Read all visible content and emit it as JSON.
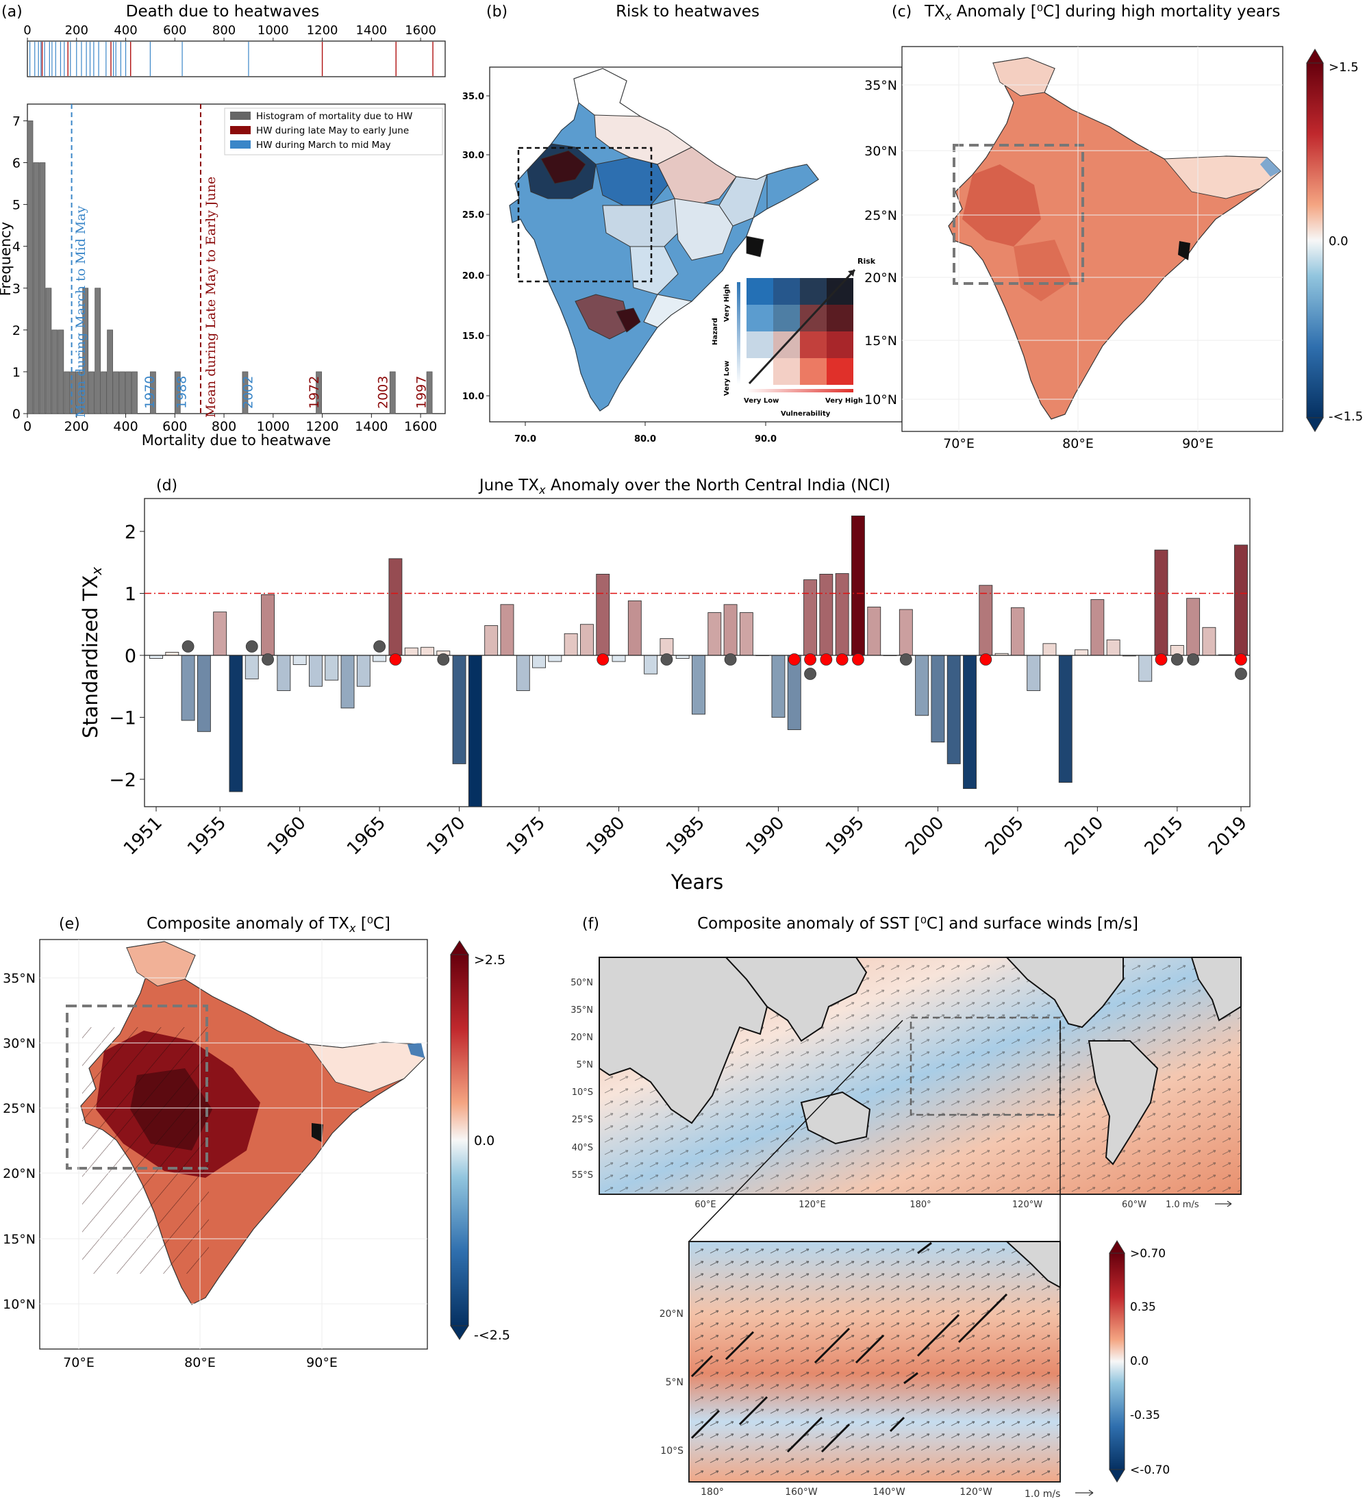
{
  "panel_a": {
    "letter": "(a)",
    "title": "Death due to heatwaves",
    "xlabel": "Mortality due to heatwave",
    "ylabel": "Frequency",
    "strip_ticks": [
      "0",
      "200",
      "400",
      "600",
      "800",
      "1000",
      "1200",
      "1400",
      "1600"
    ],
    "x_ticks": [
      "0",
      "200",
      "400",
      "600",
      "800",
      "1000",
      "1200",
      "1400",
      "1600"
    ],
    "y_ticks": [
      "0",
      "1",
      "2",
      "3",
      "4",
      "5",
      "6",
      "7"
    ],
    "legend": [
      {
        "label": "Histogram of mortality due to HW",
        "color": "#666666"
      },
      {
        "label": "HW during late May to early June",
        "color": "#8b0a0a"
      },
      {
        "label": "HW during March to mid May",
        "color": "#3a86c8"
      }
    ],
    "mean_blue_label": "Mean during March to Mid May",
    "mean_red_label": "Mean during Late May to Early June",
    "year_labels": [
      {
        "text": "1970",
        "color": "#3a86c8"
      },
      {
        "text": "1988",
        "color": "#3a86c8"
      },
      {
        "text": "2002",
        "color": "#3a86c8"
      },
      {
        "text": "1972",
        "color": "#8b0a0a"
      },
      {
        "text": "2003",
        "color": "#8b0a0a"
      },
      {
        "text": "1997",
        "color": "#8b0a0a"
      }
    ]
  },
  "panel_b": {
    "letter": "(b)",
    "title": "Risk to heatwaves",
    "lat_ticks": [
      "35.0",
      "30.0",
      "25.0",
      "20.0",
      "15.0",
      "10.0"
    ],
    "lon_ticks": [
      "70.0",
      "80.0",
      "90.0"
    ],
    "legend_risk": "Risk",
    "legend_hazard": "Hazard",
    "legend_vulnerability": "Vulnerability",
    "legend_very_high_y": "Very High",
    "legend_very_low_y": "Very Low",
    "legend_very_low_x": "Very Low",
    "legend_very_high_x": "Very High"
  },
  "panel_c": {
    "letter": "(c)",
    "title_pre": "TX",
    "title_sub": "x",
    "title_post": " Anomaly [⁰C] during high mortality years",
    "lat_ticks": [
      "35°N",
      "30°N",
      "25°N",
      "20°N",
      "15°N",
      "10°N"
    ],
    "lon_ticks": [
      "70°E",
      "80°E",
      "90°E"
    ],
    "cbar_labels": [
      ">1.5",
      "0.0",
      "-<1.5"
    ]
  },
  "panel_d": {
    "letter": "(d)",
    "title_pre": "June TX",
    "title_sub": "x",
    "title_post": " Anomaly over the North Central India (NCI)",
    "ylabel_pre": "Standardized TX",
    "ylabel_sub": "x",
    "xlabel": "Years",
    "y_ticks": [
      "2",
      "1",
      "0",
      "−1",
      "−2"
    ],
    "x_ticks": [
      "1951",
      "1955",
      "1960",
      "1965",
      "1970",
      "1975",
      "1980",
      "1985",
      "1990",
      "1995",
      "2000",
      "2005",
      "2010",
      "2015",
      "2019"
    ]
  },
  "panel_e": {
    "letter": "(e)",
    "title_pre": "Composite anomaly of TX",
    "title_sub": "x",
    "title_post": " [⁰C]",
    "lat_ticks": [
      "35°N",
      "30°N",
      "25°N",
      "20°N",
      "15°N",
      "10°N"
    ],
    "lon_ticks": [
      "70°E",
      "80°E",
      "90°E"
    ],
    "cbar_labels": [
      ">2.5",
      "0.0",
      "-<2.5"
    ]
  },
  "panel_f": {
    "letter": "(f)",
    "title": "Composite anomaly of SST [⁰C] and surface winds [m/s]",
    "lat_ticks": [
      "50°N",
      "35°N",
      "20°N",
      "5°N",
      "10°S",
      "25°S",
      "40°S",
      "55°S"
    ],
    "lon_ticks": [
      "60°E",
      "120°E",
      "180°",
      "120°W",
      "60°W"
    ],
    "wind_scale": "1.0 m/s",
    "inset_lat_ticks": [
      "20°N",
      "5°N",
      "10°S"
    ],
    "inset_lon_ticks": [
      "180°",
      "160°W",
      "140°W",
      "120°W"
    ],
    "inset_wind_scale": "1.0 m/s",
    "cbar_labels": [
      ">0.70",
      "0.35",
      "0.0",
      "-0.35",
      "<-0.70"
    ]
  },
  "chart_data": [
    {
      "type": "bar",
      "title": "Death due to heatwaves",
      "xlabel": "Mortality due to heatwave",
      "ylabel": "Frequency",
      "bin_width": 25,
      "bin_starts": [
        0,
        25,
        50,
        75,
        100,
        125,
        150,
        175,
        200,
        225,
        250,
        275,
        300,
        325,
        350,
        375,
        400,
        425,
        450,
        475,
        500,
        525,
        550,
        575,
        600,
        625,
        875,
        900,
        1175,
        1200,
        1475,
        1500,
        1625,
        1650
      ],
      "values": [
        7,
        6,
        6,
        3,
        2,
        2,
        1,
        1,
        1,
        3,
        1,
        3,
        1,
        2,
        1,
        1,
        1,
        1,
        0,
        0,
        1,
        0,
        0,
        0,
        1,
        0,
        1,
        0,
        1,
        0,
        1,
        0,
        1,
        0
      ],
      "xlim": [
        0,
        1700
      ],
      "ylim": [
        0,
        7.4
      ],
      "mean_march_mid_may": 180,
      "mean_late_may_early_june": 705,
      "strip_blue": [
        10,
        30,
        45,
        55,
        70,
        90,
        100,
        115,
        135,
        150,
        175,
        200,
        220,
        240,
        255,
        270,
        290,
        320,
        350,
        360,
        380,
        400,
        500,
        630,
        900
      ],
      "strip_red": [
        60,
        165,
        340,
        420,
        1200,
        1500,
        1650
      ]
    },
    {
      "type": "bar",
      "title": "June TXx Anomaly over the North Central India (NCI)",
      "xlabel": "Years",
      "ylabel": "Standardized TXx",
      "x": [
        1951,
        1952,
        1953,
        1954,
        1955,
        1956,
        1957,
        1958,
        1959,
        1960,
        1961,
        1962,
        1963,
        1964,
        1965,
        1966,
        1967,
        1968,
        1969,
        1970,
        1971,
        1972,
        1973,
        1974,
        1975,
        1976,
        1977,
        1978,
        1979,
        1980,
        1981,
        1982,
        1983,
        1984,
        1985,
        1986,
        1987,
        1988,
        1989,
        1990,
        1991,
        1992,
        1993,
        1994,
        1995,
        1996,
        1997,
        1998,
        1999,
        2000,
        2001,
        2002,
        2003,
        2004,
        2005,
        2006,
        2007,
        2008,
        2009,
        2010,
        2011,
        2012,
        2013,
        2014,
        2015,
        2016,
        2017,
        2018,
        2019
      ],
      "values": [
        -0.05,
        0.05,
        -1.05,
        -1.23,
        0.7,
        -2.2,
        -0.38,
        0.98,
        -0.57,
        -0.15,
        -0.5,
        -0.4,
        -0.85,
        -0.5,
        -0.1,
        1.56,
        0.12,
        0.13,
        0.07,
        -1.75,
        -2.5,
        0.48,
        0.82,
        -0.57,
        -0.2,
        -0.1,
        0.35,
        0.5,
        1.31,
        -0.1,
        0.88,
        -0.3,
        0.27,
        -0.05,
        -0.95,
        0.69,
        0.82,
        0.69,
        0.0,
        -1.0,
        -1.2,
        1.22,
        1.31,
        1.32,
        2.25,
        0.78,
        0.0,
        0.74,
        -0.97,
        -1.4,
        -1.75,
        -2.15,
        1.13,
        0.03,
        0.77,
        -0.57,
        0.19,
        -2.05,
        0.09,
        0.9,
        0.25,
        -0.01,
        -0.42,
        1.7,
        0.16,
        0.92,
        0.45,
        0.01,
        1.78
      ],
      "threshold": 1.0,
      "ylim": [
        -2.5,
        2.5
      ],
      "red_marker_years": [
        1966,
        1979,
        1991,
        1992,
        1993,
        1994,
        1995,
        2003,
        2014,
        2019
      ],
      "grey_marker_below_years": [
        1958,
        1969,
        1983,
        1987,
        1992,
        1998,
        2015,
        2016,
        2019
      ],
      "grey_marker_above_years": [
        1953,
        1957,
        1965
      ]
    }
  ]
}
